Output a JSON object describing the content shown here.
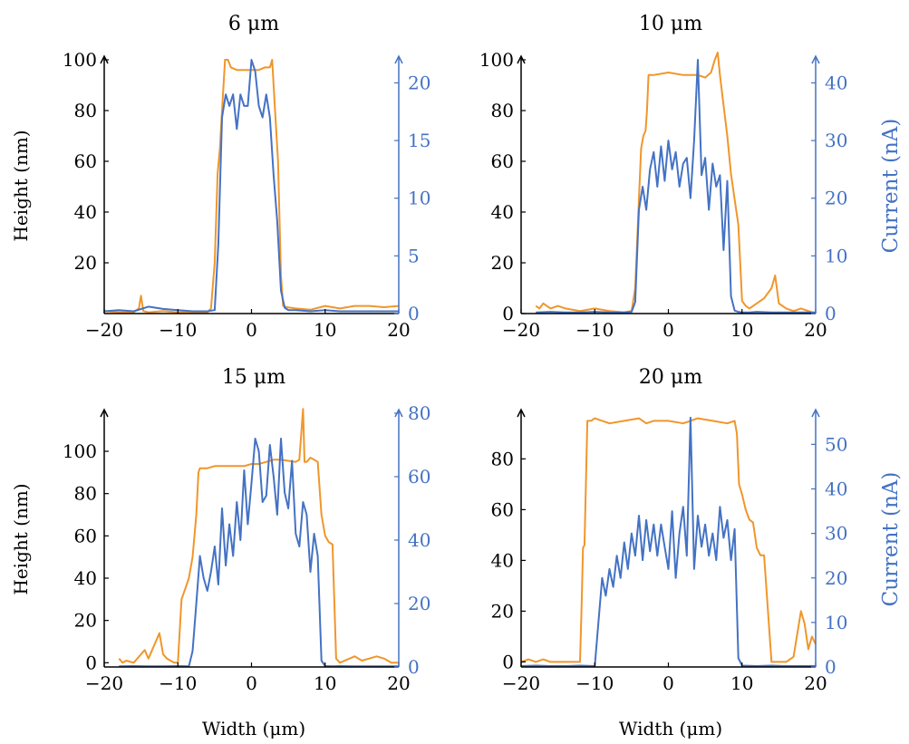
{
  "figure": {
    "height_label": "Height (nm)",
    "current_label": "Current (nA)",
    "width_label": "Width (μm)"
  },
  "colors": {
    "height": "#f0962b",
    "current": "#4472c4",
    "axis": "#000000"
  },
  "chart_data": [
    {
      "type": "line",
      "title": "6 μm",
      "xlabel": "",
      "ylabel": "Height (nm)",
      "y2label": "",
      "xlim": [
        -20,
        20
      ],
      "ylim": [
        0,
        100
      ],
      "y2lim": [
        0,
        22
      ],
      "xticks": [
        "−20",
        "−10",
        "0",
        "10",
        "20"
      ],
      "yticks": [
        "20",
        "40",
        "60",
        "80",
        "100"
      ],
      "y2ticks": [
        "0",
        "5",
        "10",
        "15",
        "20"
      ],
      "series": [
        {
          "axis": "left",
          "x": [
            -20,
            -18,
            -16,
            -15.3,
            -15,
            -14.7,
            -14,
            -12,
            -10,
            -8,
            -6,
            -5.5,
            -5,
            -4.6,
            -4.3,
            -4,
            -3.6,
            -3.2,
            -2.8,
            -2,
            -1,
            0,
            1,
            1.8,
            2.5,
            2.8,
            3.2,
            3.6,
            4,
            4.3,
            4.8,
            6,
            8,
            10,
            12,
            14,
            16,
            18,
            20
          ],
          "y": [
            1,
            0.5,
            0.5,
            2,
            7,
            1,
            0.5,
            1,
            0.5,
            0.5,
            0.5,
            2,
            20,
            55,
            65,
            80,
            100,
            100,
            97,
            96,
            96,
            96,
            96,
            97,
            97,
            100,
            80,
            60,
            15,
            3,
            2.5,
            2,
            1.5,
            3,
            2,
            3,
            3,
            2.5,
            3
          ]
        },
        {
          "axis": "right",
          "x": [
            -20,
            -18,
            -16,
            -14,
            -12,
            -10,
            -8,
            -6,
            -5,
            -4.5,
            -4,
            -3.5,
            -3,
            -2.5,
            -2,
            -1.5,
            -1,
            -0.5,
            0,
            0.5,
            1,
            1.5,
            2,
            2.5,
            3,
            3.5,
            4,
            4.5,
            5,
            6,
            8,
            10,
            12,
            14,
            16,
            18,
            20
          ],
          "y": [
            0.2,
            0.3,
            0.2,
            0.6,
            0.4,
            0.3,
            0.2,
            0.2,
            0.3,
            6,
            17,
            19,
            18,
            19,
            16,
            19,
            18,
            18,
            22,
            21,
            18,
            17,
            19,
            17,
            12,
            8,
            2,
            0.5,
            0.3,
            0.3,
            0.2,
            0.3,
            0.2,
            0.2,
            0.2,
            0.2,
            0.2
          ]
        }
      ]
    },
    {
      "type": "line",
      "title": "10 μm",
      "xlabel": "",
      "ylabel": "",
      "y2label": "Current (nA)",
      "xlim": [
        -20,
        20
      ],
      "ylim": [
        0,
        100
      ],
      "y2lim": [
        0,
        44
      ],
      "xticks": [
        "−20",
        "−10",
        "0",
        "10",
        "20"
      ],
      "yticks": [
        "0",
        "20",
        "40",
        "60",
        "80",
        "100"
      ],
      "y2ticks": [
        "0",
        "10",
        "20",
        "30",
        "40"
      ],
      "series": [
        {
          "axis": "left",
          "x": [
            -18,
            -17.5,
            -17,
            -16,
            -15,
            -14,
            -12,
            -10,
            -8,
            -6,
            -5,
            -4.5,
            -4,
            -3.7,
            -3.4,
            -3.1,
            -2.9,
            -2.7,
            -2,
            0,
            2,
            4,
            5,
            5.8,
            6.3,
            6.7,
            7,
            7.5,
            8,
            8.5,
            9,
            9.5,
            10,
            10.5,
            11,
            12,
            13,
            14,
            14.5,
            15,
            16,
            17,
            18,
            19,
            20
          ],
          "y": [
            3,
            2,
            4,
            2,
            3,
            2,
            1,
            2,
            1,
            0.5,
            1,
            10,
            45,
            65,
            70,
            72,
            80,
            94,
            94,
            95,
            94,
            94,
            93,
            95,
            100,
            104,
            94,
            82,
            70,
            55,
            45,
            35,
            5,
            3,
            2,
            4,
            6,
            10,
            15,
            4,
            2,
            1,
            2,
            1,
            0
          ]
        },
        {
          "axis": "right",
          "x": [
            -18,
            -16,
            -14,
            -12,
            -10,
            -8,
            -6,
            -5,
            -4.5,
            -4,
            -3.5,
            -3,
            -2.5,
            -2,
            -1.5,
            -1,
            -0.5,
            0,
            0.5,
            1,
            1.5,
            2,
            2.5,
            3,
            3.5,
            4,
            4.5,
            5,
            5.5,
            6,
            6.5,
            7,
            7.5,
            8,
            8.5,
            9,
            9.5,
            10,
            11,
            12,
            14,
            16,
            18,
            20
          ],
          "y": [
            0.2,
            0.3,
            0.2,
            0.2,
            0.3,
            0.2,
            0.2,
            0.3,
            2,
            18,
            22,
            18,
            25,
            28,
            22,
            29,
            23,
            30,
            25,
            28,
            22,
            26,
            27,
            20,
            30,
            44,
            24,
            27,
            18,
            26,
            22,
            24,
            11,
            23,
            3,
            0.5,
            0.3,
            0.2,
            0.2,
            0.3,
            0.2,
            0.2,
            0.2,
            0.2
          ]
        }
      ]
    },
    {
      "type": "line",
      "title": "15 μm",
      "xlabel": "Width (μm)",
      "ylabel": "Height (nm)",
      "y2label": "",
      "xlim": [
        -20,
        20
      ],
      "ylim": [
        -2,
        118
      ],
      "y2lim": [
        0,
        80
      ],
      "xticks": [
        "−20",
        "−10",
        "0",
        "10",
        "20"
      ],
      "yticks": [
        "0",
        "20",
        "40",
        "60",
        "80",
        "100"
      ],
      "y2ticks": [
        "0",
        "20",
        "40",
        "60",
        "80"
      ],
      "series": [
        {
          "axis": "left",
          "x": [
            -18,
            -17.5,
            -17,
            -16,
            -15,
            -14.5,
            -14,
            -13,
            -12.5,
            -12,
            -11.5,
            -10.5,
            -10,
            -9.5,
            -9,
            -8.5,
            -8,
            -7.5,
            -7.2,
            -7,
            -6,
            -5,
            -3,
            -1,
            0,
            1,
            2,
            3,
            4,
            6,
            6.5,
            7,
            7.2,
            7.5,
            8,
            8.5,
            9,
            9.5,
            10,
            10.5,
            11,
            11.5,
            12,
            14,
            15,
            16,
            17,
            18,
            19,
            20
          ],
          "y": [
            2,
            0,
            1,
            0,
            4,
            6,
            2,
            10,
            14,
            4,
            2,
            0,
            0,
            30,
            35,
            40,
            50,
            70,
            90,
            92,
            92,
            93,
            93,
            93,
            94,
            94,
            95,
            96,
            96,
            95,
            96,
            120,
            95,
            95,
            97,
            96,
            95,
            70,
            60,
            57,
            56,
            2,
            0,
            3,
            1,
            2,
            3,
            2,
            0,
            0
          ]
        },
        {
          "axis": "right",
          "x": [
            -18,
            -16,
            -14,
            -12,
            -10,
            -8.5,
            -8,
            -7.5,
            -7,
            -6.5,
            -6,
            -5.5,
            -5,
            -4.5,
            -4,
            -3.5,
            -3,
            -2.5,
            -2,
            -1.5,
            -1,
            -0.5,
            0,
            0.5,
            1,
            1.5,
            2,
            2.5,
            3,
            3.5,
            4,
            4.5,
            5,
            5.5,
            6,
            6.5,
            7,
            7.5,
            8,
            8.5,
            9,
            9.5,
            10,
            11,
            12,
            14,
            16,
            18,
            20
          ],
          "y": [
            0.2,
            0.3,
            0.2,
            0.2,
            0.3,
            0.2,
            5,
            20,
            35,
            28,
            24,
            30,
            38,
            26,
            50,
            32,
            45,
            35,
            52,
            40,
            62,
            45,
            58,
            72,
            68,
            52,
            54,
            70,
            60,
            48,
            72,
            55,
            50,
            65,
            42,
            38,
            52,
            48,
            30,
            42,
            35,
            2,
            0.3,
            0.2,
            0.3,
            0.2,
            0.2,
            0.2,
            0.2
          ]
        }
      ]
    },
    {
      "type": "line",
      "title": "20 μm",
      "xlabel": "Width (μm)",
      "ylabel": "",
      "y2label": "Current (nA)",
      "xlim": [
        -20,
        20
      ],
      "ylim": [
        -2,
        98
      ],
      "y2lim": [
        0,
        57
      ],
      "xticks": [
        "−20",
        "−10",
        "0",
        "10",
        "20"
      ],
      "yticks": [
        "0",
        "20",
        "40",
        "60",
        "80"
      ],
      "y2ticks": [
        "0",
        "10",
        "20",
        "30",
        "40",
        "50"
      ],
      "series": [
        {
          "axis": "left",
          "x": [
            -20,
            -19,
            -18,
            -17,
            -16,
            -15,
            -14,
            -13,
            -12,
            -11.8,
            -11.6,
            -11.4,
            -11.2,
            -11,
            -10.5,
            -10,
            -8,
            -6,
            -4,
            -3,
            -2,
            0,
            2,
            3,
            4,
            6,
            8,
            9,
            9.3,
            9.6,
            10,
            10.5,
            11,
            11.5,
            12,
            12.5,
            13,
            14,
            15,
            16,
            17,
            18,
            18.5,
            19,
            19.5,
            20
          ],
          "y": [
            0,
            1,
            0,
            1,
            0,
            0,
            0,
            0,
            0,
            20,
            45,
            46,
            70,
            95,
            95,
            96,
            94,
            95,
            96,
            94,
            95,
            95,
            94,
            95,
            96,
            95,
            94,
            95,
            90,
            70,
            66,
            60,
            56,
            55,
            45,
            42,
            42,
            0,
            0,
            0,
            2,
            20,
            15,
            5,
            10,
            7
          ]
        },
        {
          "axis": "right",
          "x": [
            -20,
            -18,
            -16,
            -14,
            -12,
            -10,
            -9.5,
            -9,
            -8.5,
            -8,
            -7.5,
            -7,
            -6.5,
            -6,
            -5.5,
            -5,
            -4.5,
            -4,
            -3.5,
            -3,
            -2.5,
            -2,
            -1.5,
            -1,
            -0.5,
            0,
            0.5,
            1,
            1.5,
            2,
            2.5,
            3,
            3.5,
            4,
            4.5,
            5,
            5.5,
            6,
            6.5,
            7,
            7.5,
            8,
            8.5,
            9,
            9.5,
            10,
            12,
            14,
            16,
            18,
            20
          ],
          "y": [
            0.2,
            0.3,
            0.2,
            0.2,
            0.3,
            0.2,
            10,
            20,
            16,
            22,
            18,
            25,
            20,
            28,
            22,
            30,
            25,
            34,
            24,
            33,
            26,
            32,
            25,
            32,
            27,
            22,
            35,
            20,
            30,
            36,
            25,
            56,
            22,
            34,
            27,
            32,
            25,
            30,
            24,
            36,
            29,
            33,
            24,
            31,
            2,
            0.3,
            0.2,
            0.3,
            0.2,
            0.2,
            0.2
          ]
        }
      ]
    }
  ]
}
